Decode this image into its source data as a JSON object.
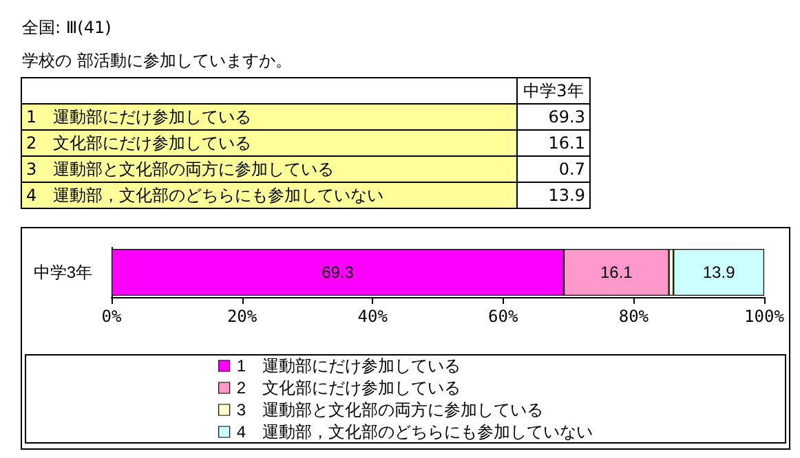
{
  "chart_data": [
    {
      "type": "other",
      "title": "全国: Ⅲ(41)",
      "subtitle": "学校の 部活動に参加していますか。",
      "categories": [
        "1　運動部にだけ参加している",
        "2　文化部にだけ参加している",
        "3　運動部と文化部の両方に参加している",
        "4　運動部，文化部のどちらにも参加していない"
      ],
      "series": [
        {
          "name": "中学3年",
          "values": [
            69.3,
            16.1,
            0.7,
            13.9
          ]
        }
      ],
      "data_labels": true
    },
    {
      "type": "bar",
      "orientation": "horizontal",
      "stacked": true,
      "categories": [
        "中学3年"
      ],
      "series": [
        {
          "name": "1　運動部にだけ参加している",
          "color": "#ff00ff",
          "values": [
            69.3
          ],
          "value_labels": [
            "69.3"
          ]
        },
        {
          "name": "2　文化部にだけ参加している",
          "color": "#ff99cc",
          "values": [
            16.1
          ],
          "value_labels": [
            "16.1"
          ]
        },
        {
          "name": "3　運動部と文化部の両方に参加している",
          "color": "#ffffcc",
          "values": [
            0.7
          ],
          "value_labels": [
            null
          ]
        },
        {
          "name": "4　運動部，文化部のどちらにも参加していない",
          "color": "#ccffff",
          "values": [
            13.9
          ],
          "value_labels": [
            "13.9"
          ]
        }
      ],
      "xlim": [
        0,
        100
      ],
      "xticks": [
        {
          "value": 0,
          "label": "0%"
        },
        {
          "value": 20,
          "label": "20%"
        },
        {
          "value": 40,
          "label": "40%"
        },
        {
          "value": 60,
          "label": "60%"
        },
        {
          "value": 80,
          "label": "80%"
        },
        {
          "value": 100,
          "label": "100%"
        }
      ],
      "legend": "bottom"
    }
  ]
}
